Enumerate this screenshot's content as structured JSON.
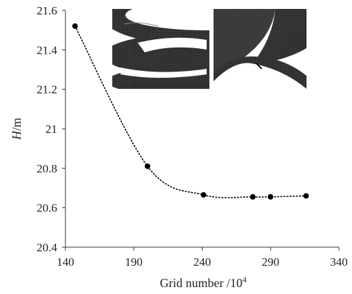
{
  "chart_data": {
    "type": "scatter",
    "title": "",
    "xlabel": "Grid number /10",
    "xlabel_sup": "4",
    "ylabel_italic": "H",
    "ylabel_rest": "/m",
    "xlim": [
      140,
      340
    ],
    "ylim": [
      20.4,
      21.6
    ],
    "x_ticks": [
      140,
      190,
      240,
      290,
      340
    ],
    "x_tick_labels": [
      "140",
      "190",
      "240",
      "290",
      "340"
    ],
    "y_ticks": [
      20.4,
      20.6,
      20.8,
      21.0,
      21.2,
      21.4,
      21.6
    ],
    "y_tick_labels": [
      "20.4",
      "20.6",
      "20.8",
      "21",
      "21.2",
      "21.4",
      "21.6"
    ],
    "grid": false,
    "legend": "none",
    "series": [
      {
        "x": [
          147,
          200,
          241,
          277,
          290,
          316
        ],
        "y": [
          21.52,
          20.81,
          20.665,
          20.655,
          20.655,
          20.66
        ],
        "marker": "circle",
        "trendline": "dotted",
        "color": "#000000"
      }
    ],
    "inset_images": [
      {
        "icon": "impeller-mesh-detail-icon"
      },
      {
        "icon": "volute-tongue-mesh-detail-icon"
      }
    ]
  }
}
